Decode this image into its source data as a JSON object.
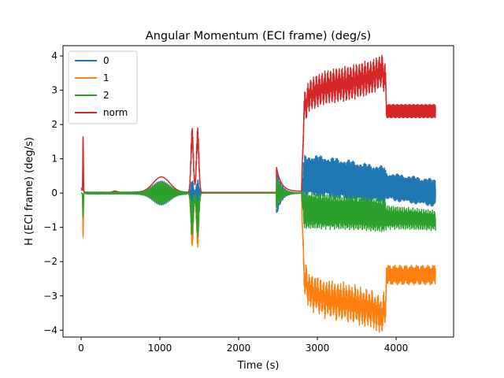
{
  "chart_data": {
    "type": "line",
    "title": "Angular Momentum (ECI frame) (deg/s)",
    "xlabel": "Time (s)",
    "ylabel": "H (ECI frame) (deg/s)",
    "xlim": [
      -230,
      4730
    ],
    "ylim": [
      -4.2,
      4.3
    ],
    "xticks": [
      0,
      1000,
      2000,
      3000,
      4000
    ],
    "yticks": [
      -4,
      -3,
      -2,
      -1,
      0,
      1,
      2,
      3,
      4
    ],
    "grid": false,
    "legend_position": "top-left",
    "series": [
      {
        "name": "0",
        "color": "#1f77b4"
      },
      {
        "name": "1",
        "color": "#ff7f0e"
      },
      {
        "name": "2",
        "color": "#2ca02c"
      },
      {
        "name": "norm",
        "color": "#d62728"
      }
    ]
  }
}
